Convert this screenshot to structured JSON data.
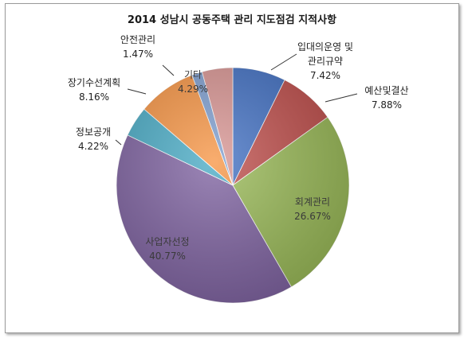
{
  "chart_data": {
    "type": "pie",
    "title": "2014 성남시 공동주택 관리 지도점검 지적사항",
    "slices": [
      {
        "label_lines": [
          "입대의운영 및",
          "관리규약"
        ],
        "value": 7.42,
        "value_text": "7.42%",
        "color": "#4472C4"
      },
      {
        "label_lines": [
          "예산및결산"
        ],
        "value": 7.88,
        "value_text": "7.88%",
        "color": "#C0504D"
      },
      {
        "label_lines": [
          "회계관리"
        ],
        "value": 26.67,
        "value_text": "26.67%",
        "color": "#9BBB59"
      },
      {
        "label_lines": [
          "사업자선정"
        ],
        "value": 40.77,
        "value_text": "40.77%",
        "color": "#8064A2"
      },
      {
        "label_lines": [
          "정보공개"
        ],
        "value": 4.22,
        "value_text": "4.22%",
        "color": "#4BACC6"
      },
      {
        "label_lines": [
          "장기수선계획"
        ],
        "value": 8.16,
        "value_text": "8.16%",
        "color": "#F79646"
      },
      {
        "label_lines": [
          "안전관리"
        ],
        "value": 1.47,
        "value_text": "1.47%",
        "color": "#7F9FD0"
      },
      {
        "label_lines": [
          "기타"
        ],
        "value": 4.29,
        "value_text": "4.29%",
        "color": "#D99694"
      }
    ]
  }
}
